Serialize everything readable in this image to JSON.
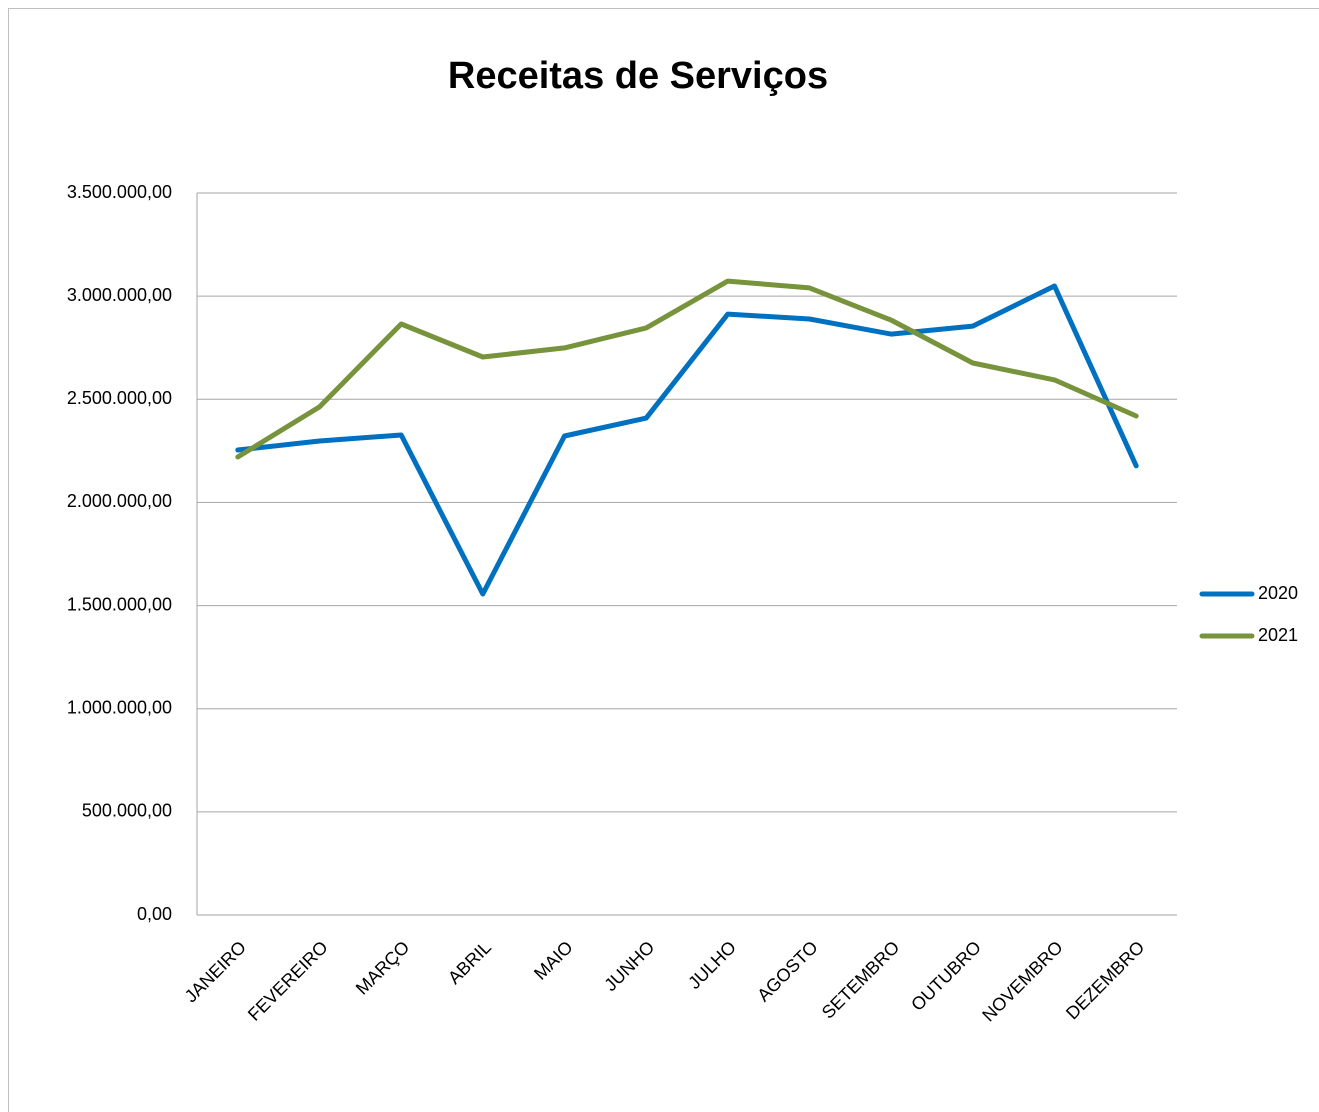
{
  "chart_data": {
    "type": "line",
    "title": "Receitas de Serviços",
    "categories": [
      "JANEIRO",
      "FEVEREIRO",
      "MARÇO",
      "ABRIL",
      "MAIO",
      "JUNHO",
      "JULHO",
      "AGOSTO",
      "SETEMBRO",
      "OUTUBRO",
      "NOVEMBRO",
      "DEZEMBRO"
    ],
    "series": [
      {
        "name": "2020",
        "color": "#0070c0",
        "values": [
          2254000,
          2298000,
          2327000,
          1556000,
          2322000,
          2409000,
          2913000,
          2889000,
          2816000,
          2855000,
          3049000,
          2177000
        ]
      },
      {
        "name": "2021",
        "color": "#77933c",
        "values": [
          2220000,
          2463000,
          2865000,
          2705000,
          2749000,
          2846000,
          3073000,
          3040000,
          2884000,
          2676000,
          2594000,
          2419000
        ]
      }
    ],
    "ylim": [
      0,
      3500000
    ],
    "yticks": [
      {
        "value": 0,
        "label": "0,00"
      },
      {
        "value": 500000,
        "label": "500.000,00"
      },
      {
        "value": 1000000,
        "label": "1.000.000,00"
      },
      {
        "value": 1500000,
        "label": "1.500.000,00"
      },
      {
        "value": 2000000,
        "label": "2.000.000,00"
      },
      {
        "value": 2500000,
        "label": "2.500.000,00"
      },
      {
        "value": 3000000,
        "label": "3.000.000,00"
      },
      {
        "value": 3500000,
        "label": "3.500.000,00"
      }
    ],
    "grid": true,
    "legend": "right"
  }
}
